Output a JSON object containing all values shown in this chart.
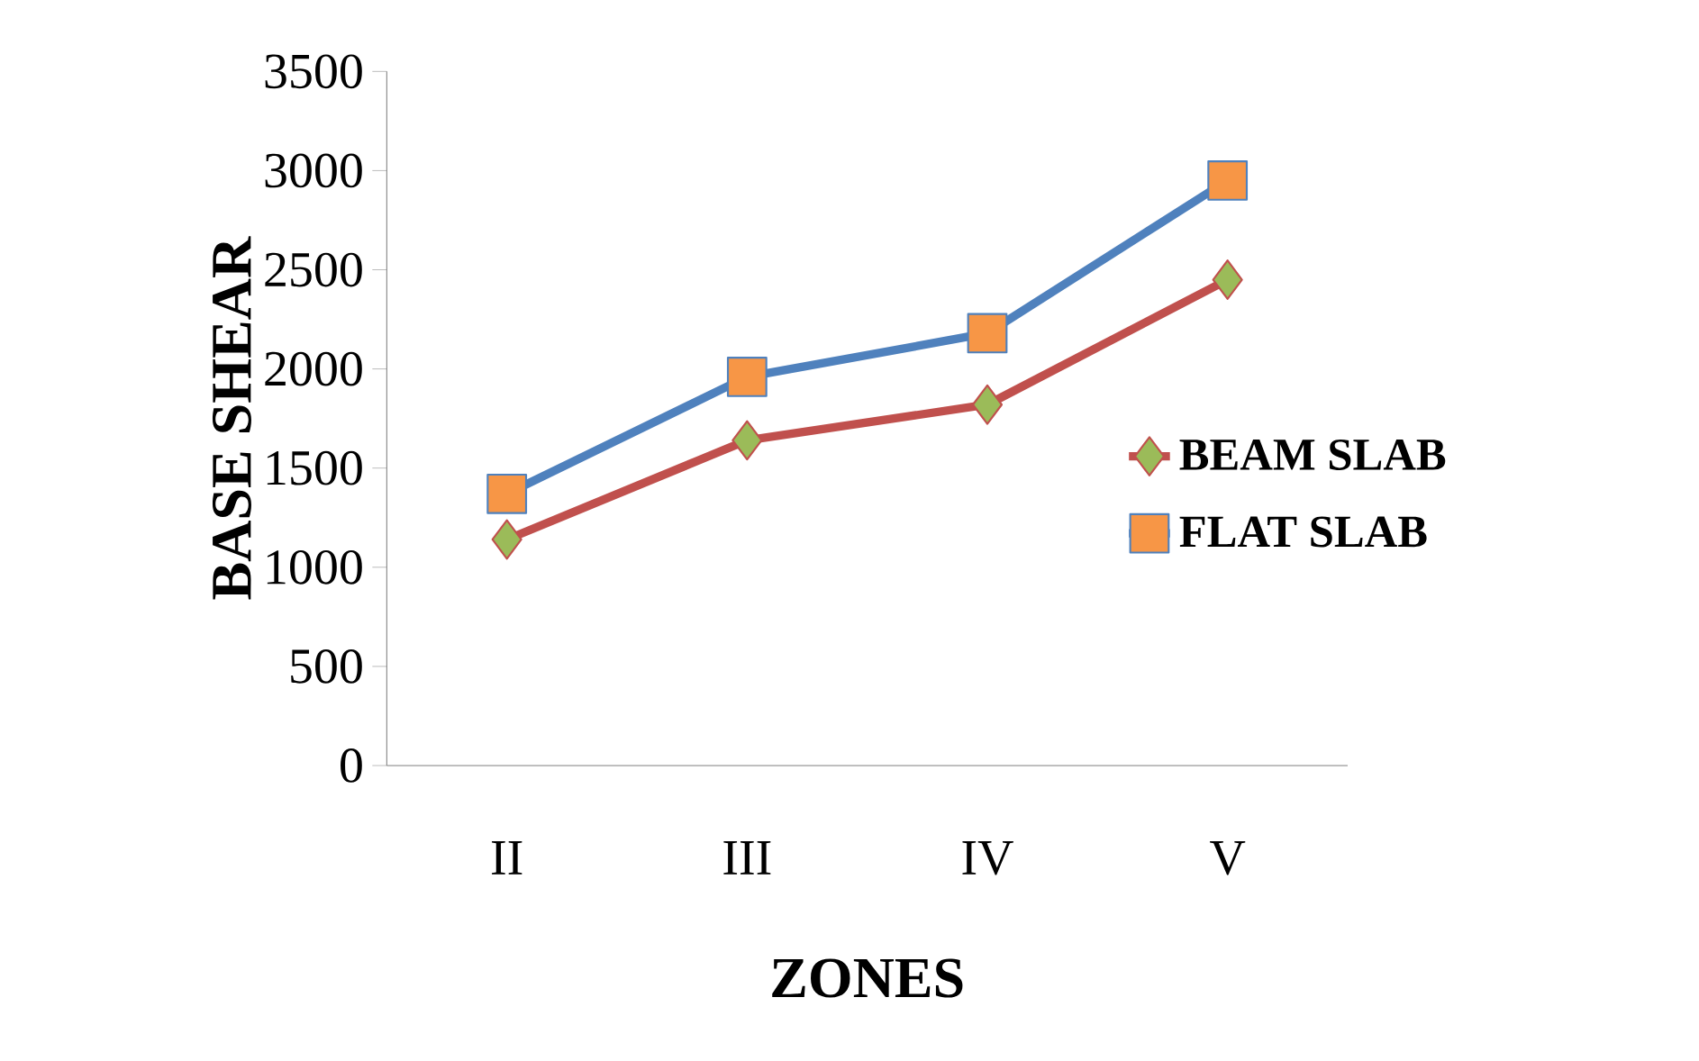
{
  "chart_data": {
    "type": "line",
    "xlabel": "ZONES",
    "ylabel": "BASE SHEAR",
    "categories": [
      "II",
      "III",
      "IV",
      "V"
    ],
    "series": [
      {
        "name": "BEAM SLAB",
        "color": "#c0504d",
        "marker": "diamond",
        "values": [
          1140,
          1640,
          1820,
          2450
        ]
      },
      {
        "name": "FLAT SLAB",
        "color": "#4f81bd",
        "marker": "square",
        "values": [
          1370,
          1960,
          2180,
          2950
        ]
      }
    ],
    "ylim": [
      0,
      3500
    ],
    "yticks": [
      0,
      500,
      1000,
      1500,
      2000,
      2500,
      3000,
      3500
    ],
    "grid": false,
    "legend": "right"
  }
}
